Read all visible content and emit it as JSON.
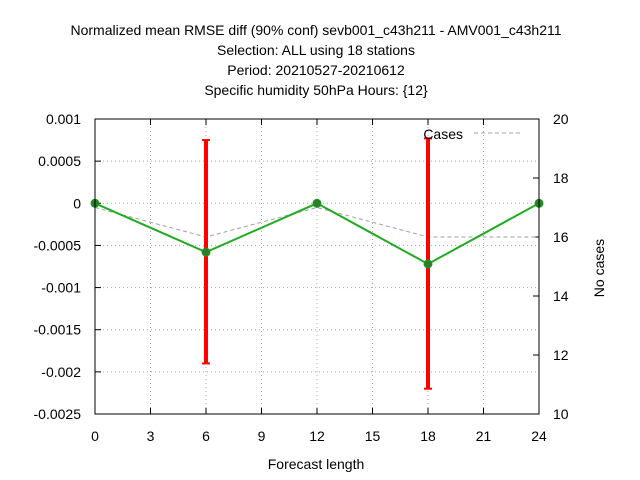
{
  "title_lines": [
    "Normalized mean RMSE diff (90% conf) sevb001_c43h211 - AMV001_c43h211",
    "Selection: ALL using    18 stations",
    "Period: 20210527-20210612",
    "Specific humidity 50hPa  Hours: {12}"
  ],
  "chart_data": {
    "type": "line",
    "xlabel": "Forecast length",
    "ylabel": "",
    "y2label": "No cases",
    "xlim": [
      0,
      24
    ],
    "ylim": [
      -0.0025,
      0.001
    ],
    "y2lim": [
      10,
      20
    ],
    "grid": true,
    "x_ticks": [
      "0",
      "3",
      "6",
      "9",
      "12",
      "15",
      "18",
      "21",
      "24"
    ],
    "y_ticks": [
      "0.001",
      "0.0005",
      "0",
      "-0.0005",
      "-0.001",
      "-0.0015",
      "-0.002",
      "-0.0025"
    ],
    "y2_ticks": [
      "20",
      "18",
      "16",
      "14",
      "12",
      "10"
    ],
    "legend": {
      "position": "top-right",
      "entries": [
        "Cases"
      ]
    },
    "series": [
      {
        "role": "rmse-diff",
        "color": "#22aa22",
        "marker_color": "#2d7d2d",
        "x": [
          0,
          6,
          12,
          18,
          24
        ],
        "y": [
          0.0,
          -0.00058,
          0.0,
          -0.00072,
          0.0
        ]
      },
      {
        "role": "confidence-interval",
        "color": "#ff0000",
        "x": [
          6,
          18
        ],
        "low": [
          -0.0019,
          -0.0022
        ],
        "high": [
          0.00075,
          0.00077
        ]
      },
      {
        "name": "Cases",
        "axis": "y2",
        "style": "dashed",
        "color": "#a0a0a0",
        "x": [
          0,
          6,
          12,
          18,
          24
        ],
        "y": [
          17,
          16,
          17,
          16,
          16
        ]
      }
    ]
  }
}
